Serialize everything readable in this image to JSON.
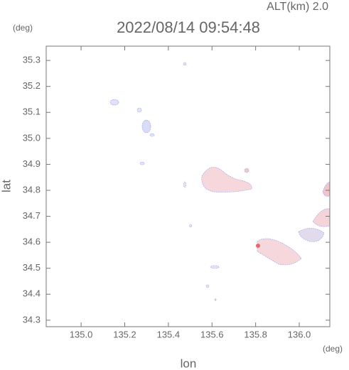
{
  "chart_data": {
    "type": "map",
    "title": "2022/08/14 09:54:48",
    "altitude_label": "ALT(km) 2.0",
    "y_unit": "(deg)",
    "x_unit": "(deg)",
    "xlabel": "lon",
    "ylabel": "lat",
    "xlim": [
      134.84,
      136.14
    ],
    "ylim": [
      34.275,
      35.355
    ],
    "xticks": [
      {
        "value": 135,
        "label": "135.0"
      },
      135.2,
      135.4,
      135.6,
      135.8,
      {
        "value": 136,
        "label": "136.0"
      }
    ],
    "yticks": [
      34.3,
      34.4,
      34.5,
      34.6,
      34.7,
      34.8,
      34.9,
      {
        "value": 35,
        "label": "35.0"
      },
      35.1,
      35.2,
      35.3
    ]
  }
}
